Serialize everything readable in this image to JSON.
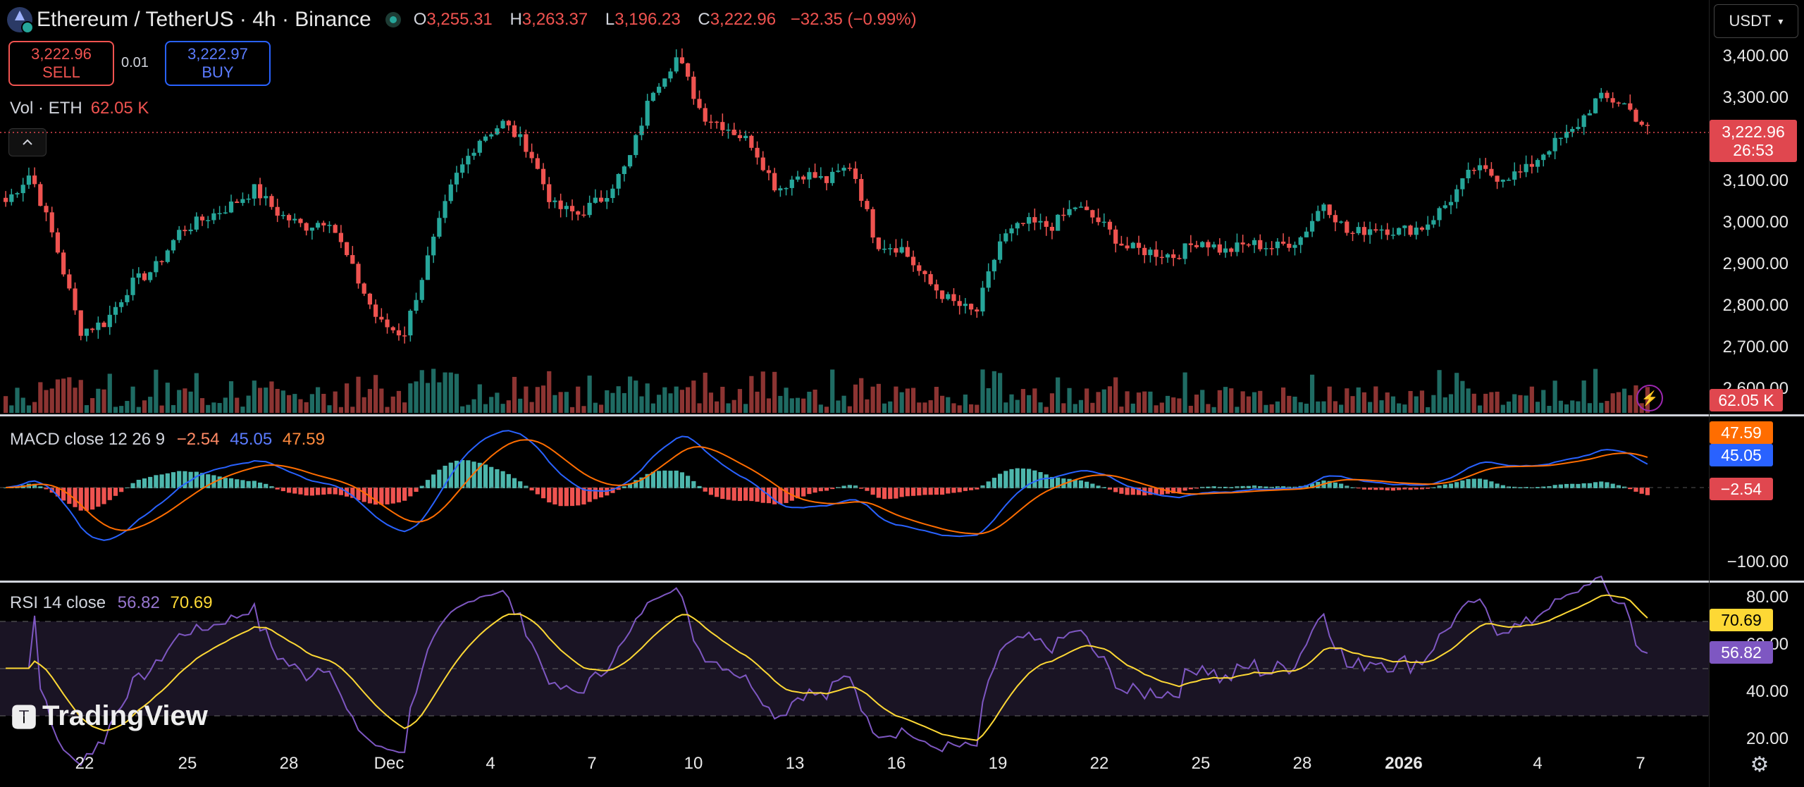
{
  "header": {
    "symbol": "Ethereum / TetherUS · 4h · Binance",
    "o_key": "O",
    "o_val": "3,255.31",
    "h_key": "H",
    "h_val": "3,263.37",
    "l_key": "L",
    "l_val": "3,196.23",
    "c_key": "C",
    "c_val": "3,222.96",
    "change": "−32.35 (−0.99%)"
  },
  "trade": {
    "sell_price": "3,222.96",
    "sell_label": "SELL",
    "spread": "0.01",
    "buy_price": "3,222.97",
    "buy_label": "BUY"
  },
  "volume": {
    "label": "Vol · ETH",
    "value": "62.05 K",
    "tag": "62.05 K"
  },
  "currency_selector": "USDT",
  "price_axis": {
    "ticks": [
      "3,400.00",
      "3,300.00",
      "3,200.00",
      "3,100.00",
      "3,000.00",
      "2,900.00",
      "2,800.00",
      "2,700.00",
      "2,600.00"
    ],
    "current_price": "3,222.96",
    "countdown": "26:53"
  },
  "macd": {
    "label": "MACD close 12 26 9",
    "hist": "−2.54",
    "macd": "45.05",
    "signal": "47.59",
    "tick": "−100.00"
  },
  "rsi": {
    "label": "RSI 14 close",
    "value": "56.82",
    "ma": "70.69",
    "ticks": [
      "80.00",
      "60.00",
      "40.00",
      "20.00"
    ]
  },
  "time_axis": [
    "22",
    "25",
    "28",
    "Dec",
    "4",
    "7",
    "10",
    "13",
    "16",
    "19",
    "22",
    "25",
    "28",
    "2026",
    "4",
    "7"
  ],
  "branding": "TradingView",
  "colors": {
    "up": "#26a69a",
    "down": "#ef5350",
    "macd_line": "#2962ff",
    "signal_line": "#ff6d00",
    "rsi_line": "#7e57c2",
    "rsi_ma": "#fdd835",
    "price_tag": "#e0474f"
  },
  "chart_data": {
    "type": "candlestick",
    "ohlc_sample": [
      3050,
      3120,
      2950,
      2740,
      2760,
      2850,
      2890,
      2980,
      3010,
      3040,
      3080,
      3020,
      2990,
      3010,
      2880,
      2760,
      2730,
      2920,
      3100,
      3200,
      3240,
      3180,
      3040,
      3020,
      3060,
      3140,
      3320,
      3400,
      3260,
      3230,
      3190,
      3080,
      3120,
      3100,
      3140,
      2950,
      2940,
      2860,
      2810,
      2780,
      2960,
      3000,
      2990,
      3040,
      3000,
      2940,
      2930,
      2920,
      2960,
      2930,
      2950,
      2940,
      2960,
      3050,
      2970,
      2990,
      2980,
      2990,
      3050,
      3130,
      3110,
      3120,
      3180,
      3220,
      3300,
      3290,
      3223
    ]
  }
}
